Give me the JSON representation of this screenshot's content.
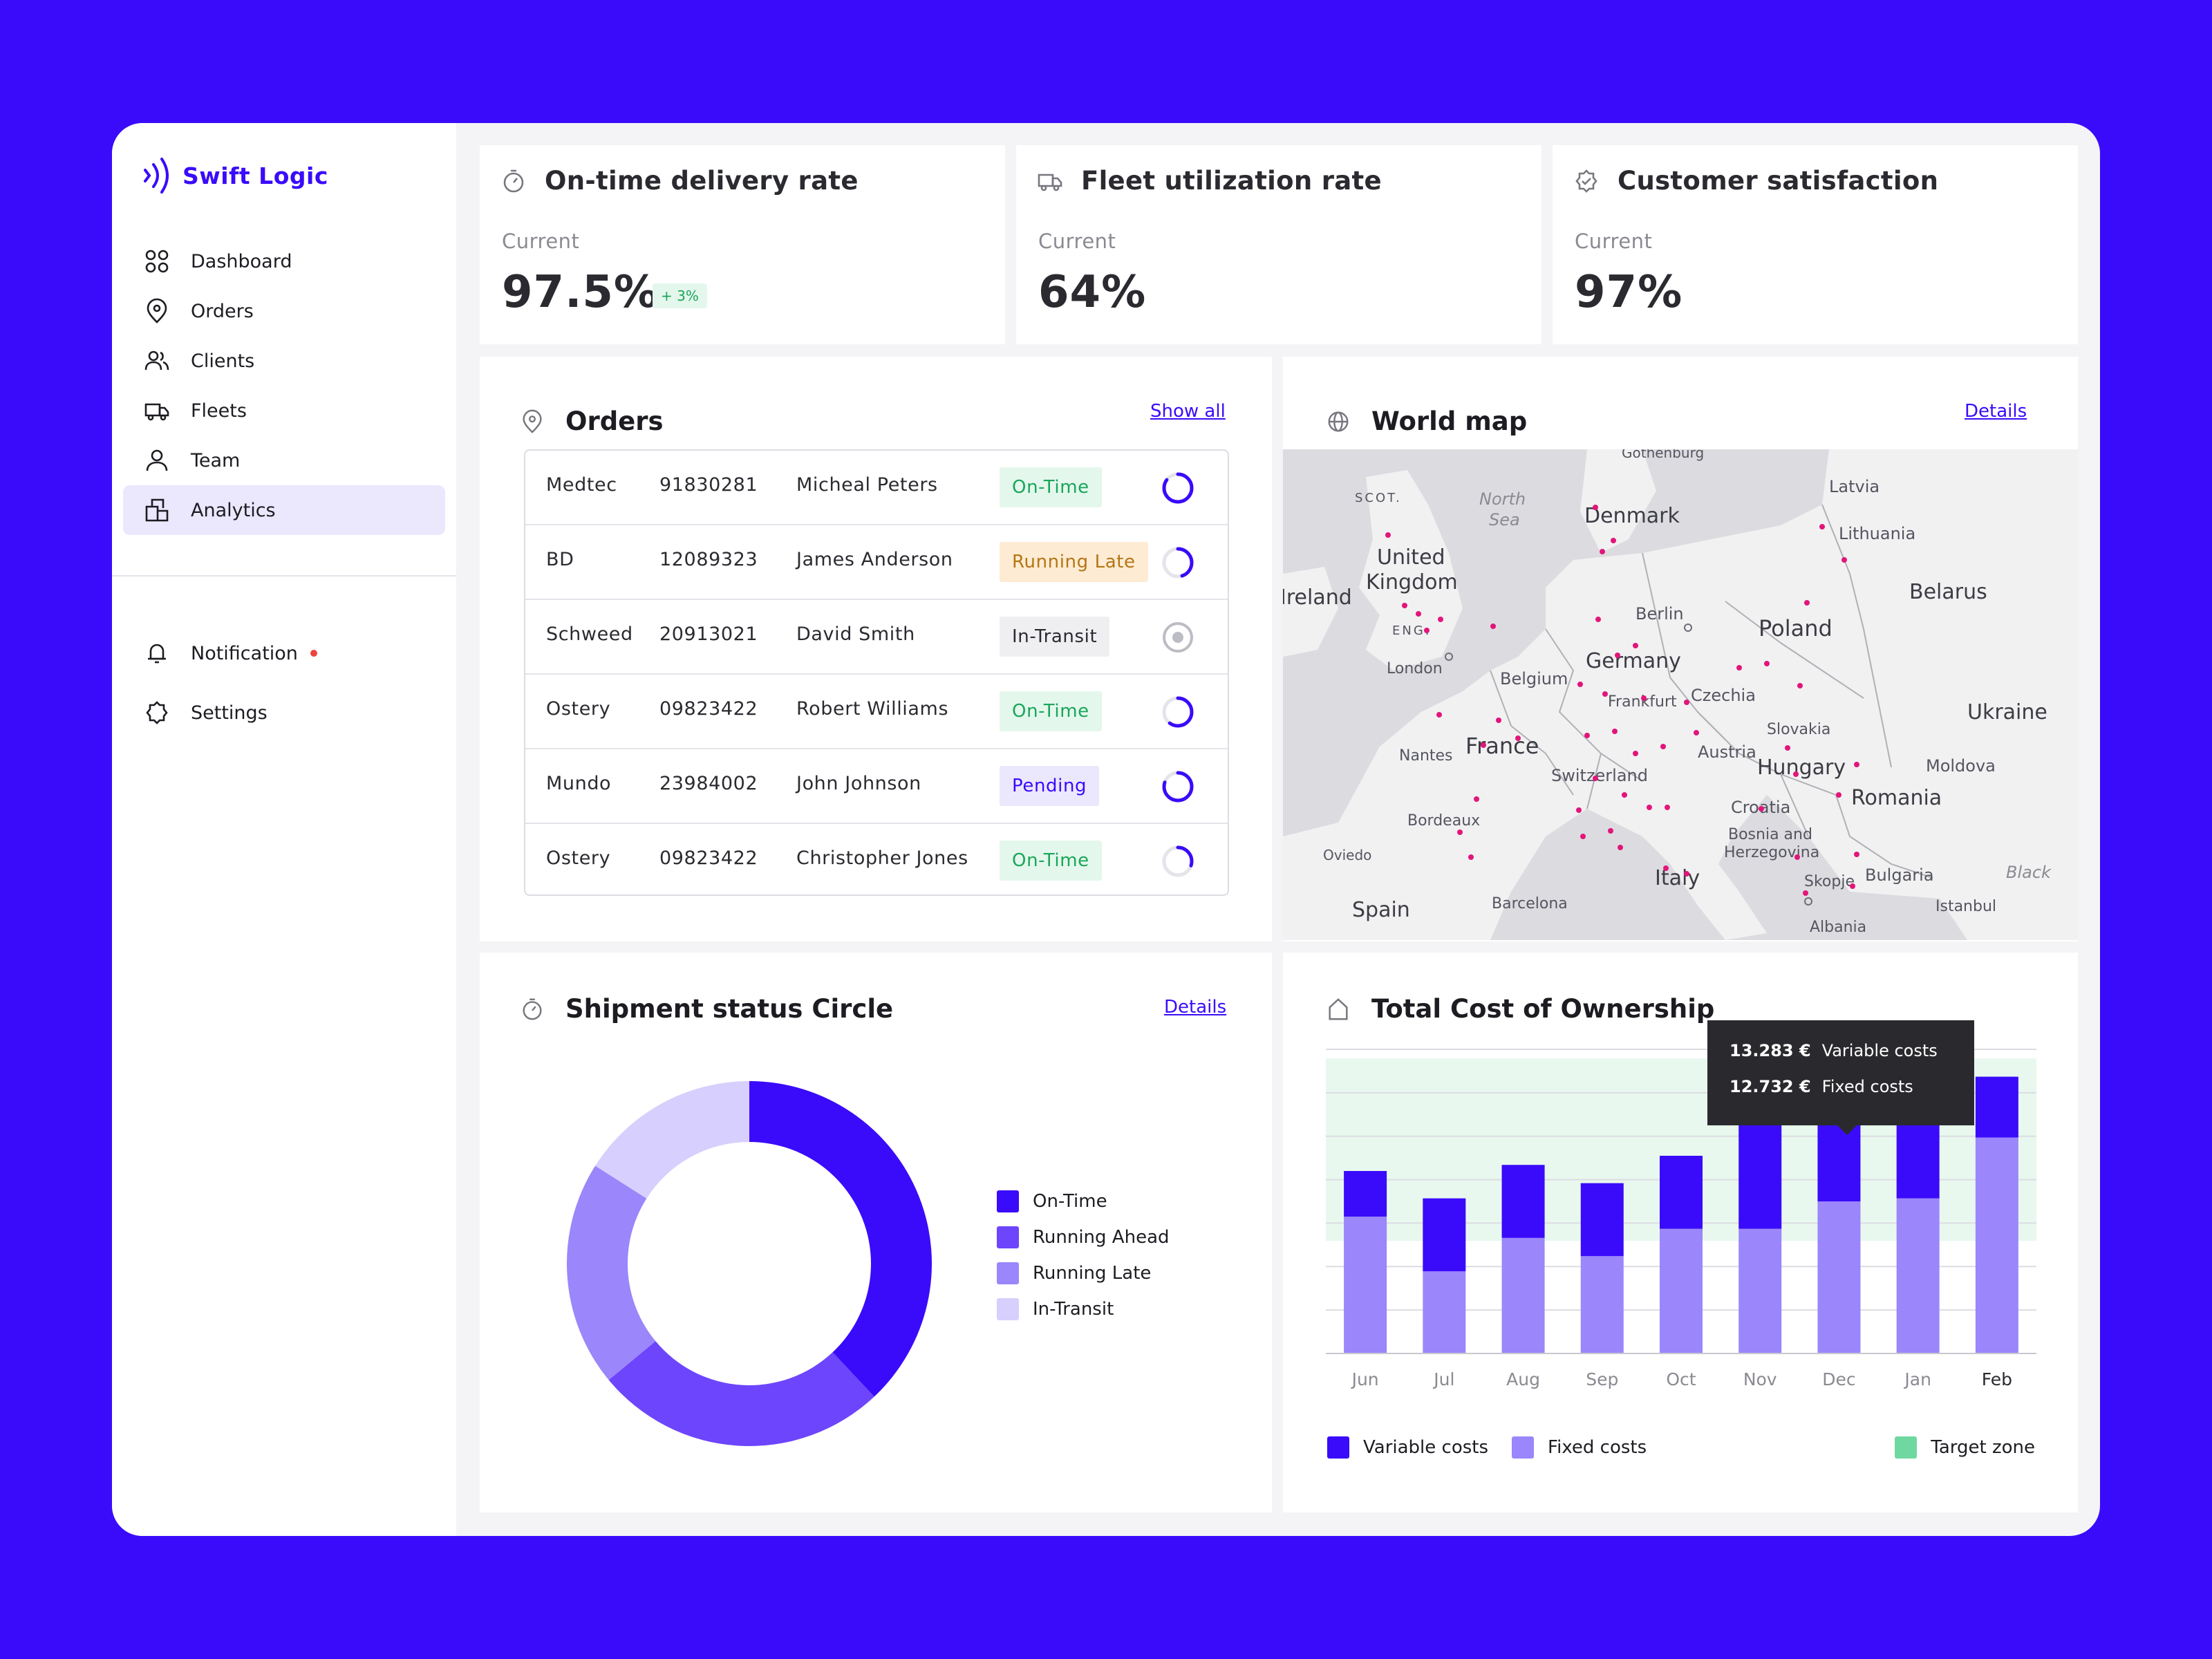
{
  "app": {
    "name": "Swift Logic"
  },
  "sidebar": {
    "items": [
      {
        "label": "Dashboard",
        "icon": "grid-icon"
      },
      {
        "label": "Orders",
        "icon": "location-pin-icon"
      },
      {
        "label": "Clients",
        "icon": "users-icon"
      },
      {
        "label": "Fleets",
        "icon": "truck-icon"
      },
      {
        "label": "Team",
        "icon": "user-icon"
      },
      {
        "label": "Analytics",
        "icon": "analytics-icon",
        "active": true
      }
    ],
    "secondary": [
      {
        "label": "Notification",
        "icon": "bell-icon",
        "has_dot": true
      },
      {
        "label": "Settings",
        "icon": "gear-icon"
      }
    ]
  },
  "kpis": [
    {
      "title": "On-time delivery rate",
      "sub": "Current",
      "value": "97.5%",
      "badge": "+ 3%",
      "icon": "timer-icon"
    },
    {
      "title": "Fleet utilization rate",
      "sub": "Current",
      "value": "64%",
      "icon": "truck-icon"
    },
    {
      "title": "Customer satisfaction",
      "sub": "Current",
      "value": "97%",
      "icon": "badge-check-icon"
    }
  ],
  "orders": {
    "title": "Orders",
    "link": "Show all",
    "rows": [
      {
        "client": "Medtec",
        "id": "91830281",
        "name": "Micheal Peters",
        "status": "On-Time",
        "kind": "ontime",
        "progress": 0.85
      },
      {
        "client": "BD",
        "id": "12089323",
        "name": "James Anderson",
        "status": "Running Late",
        "kind": "late",
        "progress": 0.45
      },
      {
        "client": "Schweed",
        "id": "20913021",
        "name": "David Smith",
        "status": "In-Transit",
        "kind": "transit",
        "progress": 0
      },
      {
        "client": "Ostery",
        "id": "09823422",
        "name": "Robert Williams",
        "status": "On-Time",
        "kind": "ontime",
        "progress": 0.6
      },
      {
        "client": "Mundo",
        "id": "23984002",
        "name": "John Johnson",
        "status": "Pending",
        "kind": "pending",
        "progress": 0.8
      },
      {
        "client": "Ostery",
        "id": "09823422",
        "name": "Christopher Jones",
        "status": "On-Time",
        "kind": "ontime",
        "progress": 0.3
      }
    ]
  },
  "map": {
    "title": "World map",
    "link": "Details",
    "labels": [
      "Gothenburg",
      "SCOT.",
      "North",
      "Sea",
      "Denmark",
      "Latvia",
      "Lithuania",
      "United",
      "Kingdom",
      "Ireland",
      "ENG.",
      "London",
      "Berlin",
      "Poland",
      "Belarus",
      "Germany",
      "Belgium",
      "Frankfurt",
      "Czechia",
      "Ukraine",
      "Slovakia",
      "France",
      "Nantes",
      "Austria",
      "Switzerland",
      "Hungary",
      "Moldova",
      "Romania",
      "Croatia",
      "Bordeaux",
      "Bosnia and",
      "Herzegovina",
      "Oviedo",
      "Italy",
      "Skopje",
      "Bulgaria",
      "Black",
      "Spain",
      "Barcelona",
      "Istanbul",
      "Albania"
    ]
  },
  "shipment": {
    "title": "Shipment status Circle",
    "link": "Details",
    "legend": [
      "On-Time",
      "Running Ahead",
      "Running Late",
      "In-Transit"
    ]
  },
  "tco": {
    "title": "Total Cost of Ownership",
    "tooltip": {
      "v1": "13.283 €",
      "l1": "Variable costs",
      "v2": "12.732 €",
      "l2": "Fixed costs"
    },
    "legend": {
      "variable": "Variable costs",
      "fixed": "Fixed costs",
      "target": "Target zone"
    }
  },
  "colors": {
    "accent": "#3a0bfa",
    "variable": "#3a0bfa",
    "fixed": "#9b86fb",
    "target": "#6fd8a0",
    "pink": "#e2157a"
  },
  "chart_data": [
    {
      "type": "pie",
      "title": "Shipment status Circle",
      "categories": [
        "On-Time",
        "Running Ahead",
        "Running Late",
        "In-Transit"
      ],
      "values": [
        38,
        26,
        20,
        16
      ],
      "colors": [
        "#3a0bfa",
        "#6d45fc",
        "#9b86fb",
        "#d7cffd"
      ],
      "donut": true
    },
    {
      "type": "bar",
      "title": "Total Cost of Ownership",
      "stacked": true,
      "categories": [
        "Jun",
        "Jul",
        "Aug",
        "Sep",
        "Oct",
        "Nov",
        "Dec",
        "Jan",
        "Feb"
      ],
      "series": [
        {
          "name": "Fixed costs",
          "values": [
            4.5,
            2.7,
            3.8,
            3.2,
            4.1,
            4.1,
            5.0,
            5.1,
            7.1
          ],
          "color": "#9b86fb"
        },
        {
          "name": "Variable costs",
          "values": [
            1.5,
            2.4,
            2.4,
            2.4,
            2.4,
            3.6,
            2.6,
            2.9,
            2.0
          ],
          "color": "#3a0bfa"
        }
      ],
      "target_zone": [
        3.7,
        9.7
      ],
      "ylim": [
        0,
        10
      ],
      "grid": true,
      "legend": "bottom",
      "highlight": "Dec"
    }
  ]
}
